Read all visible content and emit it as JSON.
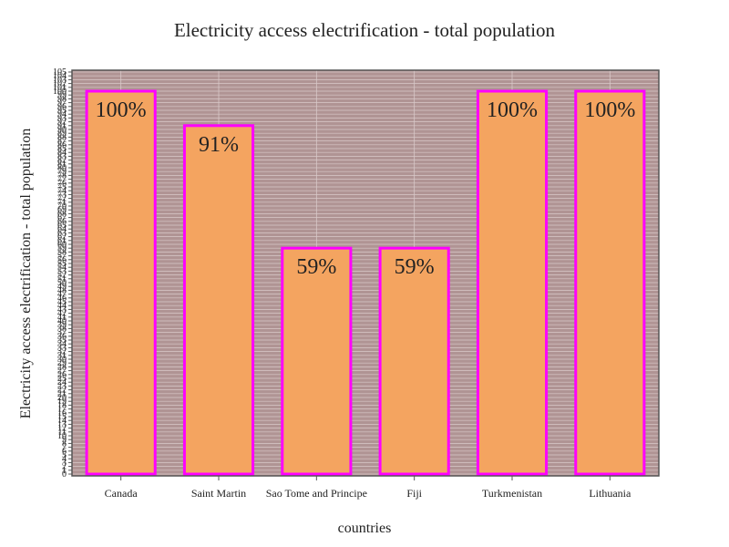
{
  "chart_data": {
    "type": "bar",
    "title": "Electricity access electrification - total population",
    "xlabel": "countries",
    "ylabel": "Electricity access electrification - total population",
    "categories": [
      "Canada",
      "Saint Martin",
      "Sao Tome and Principe",
      "Fiji",
      "Turkmenistan",
      "Lithuania"
    ],
    "values": [
      100,
      91,
      59,
      59,
      100,
      100
    ],
    "value_labels": [
      "100%",
      "91%",
      "59%",
      "59%",
      "100%",
      "100%"
    ],
    "ylim": [
      0,
      105
    ],
    "ytick_step": 1,
    "grid": true,
    "legend": "none",
    "colors": {
      "bar_fill": "#f4a460",
      "bar_stroke": "#ff00ff",
      "plot_bg": "#b09494",
      "grid": "#d9c9c9",
      "axis": "#555555"
    }
  }
}
